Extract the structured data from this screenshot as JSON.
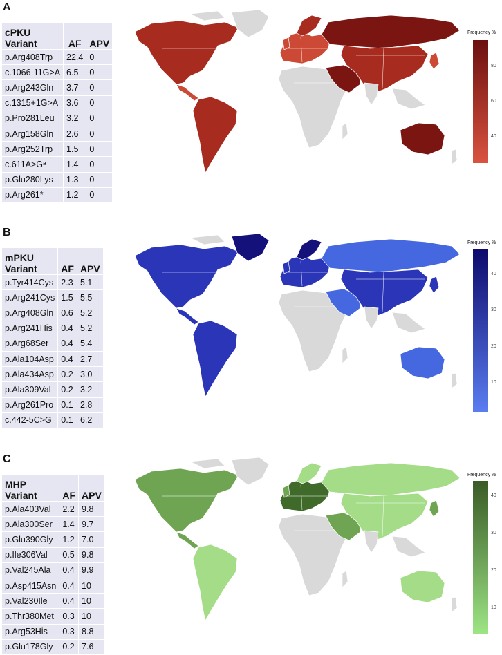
{
  "panels": [
    {
      "letter": "A",
      "header": {
        "name": "cPKU",
        "variant": "Variant",
        "af": "AF",
        "apv": "APV"
      },
      "rows": [
        [
          "p.Arg408Trp",
          "22.4",
          "0"
        ],
        [
          "c.1066-11G>A",
          "6.5",
          "0"
        ],
        [
          "p.Arg243Gln",
          "3.7",
          "0"
        ],
        [
          "c.1315+1G>A",
          "3.6",
          "0"
        ],
        [
          "p.Pro281Leu",
          "3.2",
          "0"
        ],
        [
          "p.Arg158Gln",
          "2.6",
          "0"
        ],
        [
          "p.Arg252Trp",
          "1.5",
          "0"
        ],
        [
          "c.611A>Gᵃ",
          "1.4",
          "0"
        ],
        [
          "p.Glu280Lys",
          "1.3",
          "0"
        ],
        [
          "p.Arg261*",
          "1.2",
          "0"
        ]
      ],
      "legend": {
        "title": "Frequency %",
        "ticks": [
          "80",
          "60",
          "40"
        ],
        "tick_values": [
          80,
          60,
          40
        ],
        "range": [
          25,
          95
        ],
        "low": "#d9533f",
        "high": "#6b0f10"
      },
      "colors": {
        "dark": "#7a1512",
        "mid": "#a72b1e",
        "light": "#cc4a35"
      }
    },
    {
      "letter": "B",
      "header": {
        "name": "mPKU",
        "variant": "Variant",
        "af": "AF",
        "apv": "APV"
      },
      "rows": [
        [
          "p.Tyr414Cys",
          "2.3",
          "5.1"
        ],
        [
          "p.Arg241Cys",
          "1.5",
          "5.5"
        ],
        [
          "p.Arg408Gln",
          "0.6",
          "5.2"
        ],
        [
          "p.Arg241His",
          "0.4",
          "5.2"
        ],
        [
          "p.Arg68Ser",
          "0.4",
          "5.4"
        ],
        [
          "p.Ala104Asp",
          "0.4",
          "2.7"
        ],
        [
          "p.Ala434Asp",
          "0.2",
          "3.0"
        ],
        [
          "p.Ala309Val",
          "0.2",
          "3.2"
        ],
        [
          "p.Arg261Pro",
          "0.1",
          "2.8"
        ],
        [
          "c.442-5C>G",
          "0.1",
          "6.2"
        ]
      ],
      "legend": {
        "title": "Frequency %",
        "ticks": [
          "40",
          "30",
          "20",
          "10"
        ],
        "tick_values": [
          40,
          30,
          20,
          10
        ],
        "range": [
          2,
          47
        ],
        "low": "#5a7df0",
        "high": "#0d0a6b"
      },
      "colors": {
        "dark": "#14127a",
        "mid": "#2a35b8",
        "light": "#4567e0"
      }
    },
    {
      "letter": "C",
      "header": {
        "name": "MHP",
        "variant": "Variant",
        "af": "AF",
        "apv": "APV"
      },
      "rows": [
        [
          "p.Ala403Val",
          "2.2",
          "9.8"
        ],
        [
          "p.Ala300Ser",
          "1.4",
          "9.7"
        ],
        [
          "p.Glu390Gly",
          "1.2",
          "7.0"
        ],
        [
          "p.Ile306Val",
          "0.5",
          "9.8"
        ],
        [
          "p.Val245Ala",
          "0.4",
          "9.9"
        ],
        [
          "p.Asp415Asn",
          "0.4",
          "10"
        ],
        [
          "p.Val230Ile",
          "0.4",
          "10"
        ],
        [
          "p.Thr380Met",
          "0.3",
          "10"
        ],
        [
          "p.Arg53His",
          "0.3",
          "8.8"
        ],
        [
          "p.Glu178Gly",
          "0.2",
          "7.6"
        ]
      ],
      "legend": {
        "title": "Frequency %",
        "ticks": [
          "40",
          "30",
          "20",
          "10"
        ],
        "tick_values": [
          40,
          30,
          20,
          10
        ],
        "range": [
          3,
          44
        ],
        "low": "#9de585",
        "high": "#3a5a26"
      },
      "colors": {
        "dark": "#3f6a2a",
        "mid": "#6fa552",
        "light": "#a4dc87"
      }
    }
  ]
}
